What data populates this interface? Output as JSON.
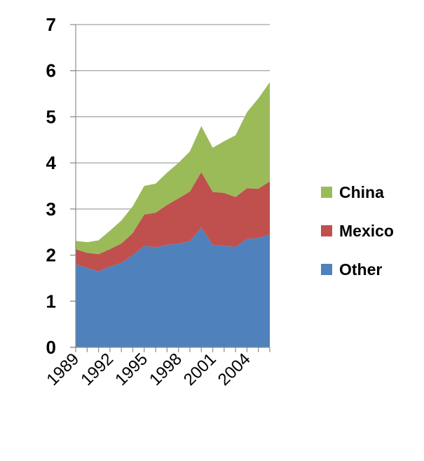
{
  "chart_data": {
    "type": "area",
    "stacked": true,
    "x": [
      1989,
      1990,
      1991,
      1992,
      1993,
      1994,
      1995,
      1996,
      1997,
      1998,
      1999,
      2000,
      2001,
      2002,
      2003,
      2004,
      2005,
      2006
    ],
    "x_tick_labels": [
      "1989",
      "1992",
      "1995",
      "1998",
      "2001",
      "2004"
    ],
    "x_tick_values": [
      1989,
      1992,
      1995,
      1998,
      2001,
      2004
    ],
    "ylim": [
      0,
      7
    ],
    "y_ticks": [
      "0",
      "1",
      "2",
      "3",
      "4",
      "5",
      "6",
      "7"
    ],
    "grid": true,
    "legend_position": "right",
    "series": [
      {
        "name": "Other",
        "color": "#4f81bd",
        "values": [
          1.8,
          1.72,
          1.65,
          1.75,
          1.83,
          2.0,
          2.2,
          2.17,
          2.22,
          2.25,
          2.3,
          2.6,
          2.22,
          2.2,
          2.18,
          2.35,
          2.37,
          2.45
        ]
      },
      {
        "name": "Mexico",
        "color": "#c0504d",
        "values": [
          0.33,
          0.33,
          0.37,
          0.38,
          0.42,
          0.48,
          0.68,
          0.75,
          0.87,
          0.98,
          1.08,
          1.2,
          1.15,
          1.15,
          1.08,
          1.1,
          1.07,
          1.15
        ]
      },
      {
        "name": "China",
        "color": "#9bbb59",
        "values": [
          0.18,
          0.23,
          0.3,
          0.4,
          0.5,
          0.58,
          0.62,
          0.63,
          0.7,
          0.77,
          0.87,
          1.0,
          0.96,
          1.12,
          1.34,
          1.65,
          1.96,
          2.15
        ]
      }
    ]
  }
}
